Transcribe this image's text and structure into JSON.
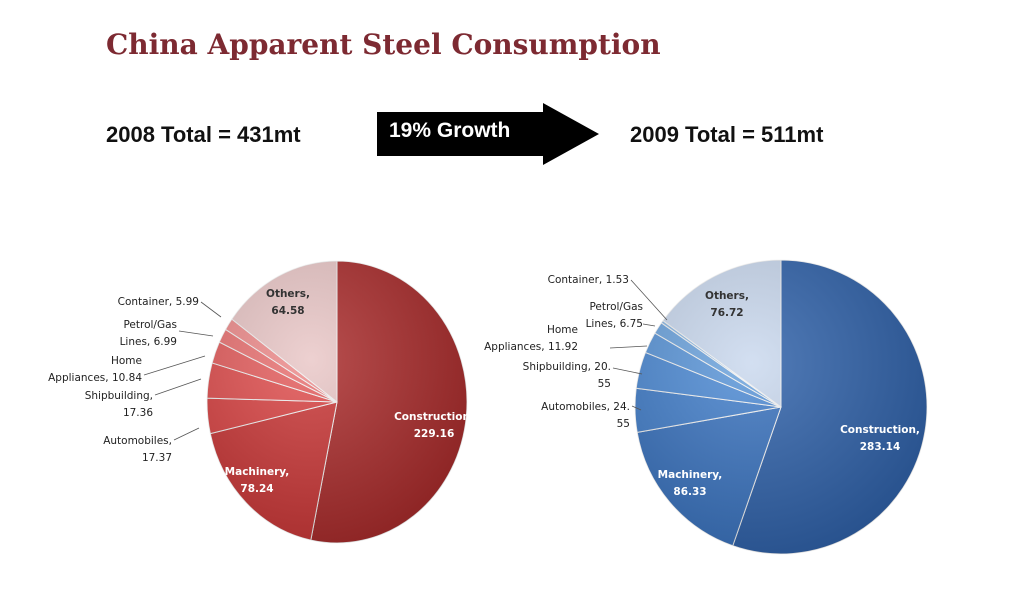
{
  "title": "China Apparent Steel Consumption",
  "total_2008": "2008 Total = 431mt",
  "total_2009": "2009 Total = 511mt",
  "growth_label": "19% Growth",
  "colors": {
    "title": "#7d2a32",
    "pie_2008_main": "#b32a2a",
    "pie_2008_others": "#e8c4c4",
    "pie_2009_main": "#2f67b0",
    "pie_2009_others": "#c6d5ec"
  },
  "chart_data": [
    {
      "type": "pie",
      "categories": [
        "Construction",
        "Machinery",
        "Automobiles",
        "Shipbuilding",
        "Home Appliances",
        "Petrol/Gas Lines",
        "Container",
        "Others"
      ],
      "values": [
        229.16,
        78.24,
        17.37,
        17.36,
        10.84,
        6.99,
        5.99,
        64.58
      ],
      "data_labels": [
        [
          "Construction,",
          "229.16"
        ],
        [
          "Machinery,",
          "78.24"
        ],
        [
          "Automobiles,",
          "17.37"
        ],
        [
          "Shipbuilding,",
          "17.36"
        ],
        [
          "Home",
          "Appliances, 10.84"
        ],
        [
          "Petrol/Gas",
          "Lines, 6.99"
        ],
        [
          "Container, 5.99"
        ],
        [
          "Others,",
          "64.58"
        ]
      ]
    },
    {
      "type": "pie",
      "categories": [
        "Construction",
        "Machinery",
        "Automobiles",
        "Shipbuilding",
        "Home Appliances",
        "Petrol/Gas Lines",
        "Container",
        "Others"
      ],
      "values": [
        283.14,
        86.33,
        24.55,
        20.55,
        11.92,
        6.75,
        1.53,
        76.72
      ],
      "data_labels": [
        [
          "Construction,",
          "283.14"
        ],
        [
          "Machinery,",
          "86.33"
        ],
        [
          "Automobiles, 24.",
          "55"
        ],
        [
          "Shipbuilding, 20.",
          "55"
        ],
        [
          "Home",
          "Appliances, 11.92"
        ],
        [
          "Petrol/Gas",
          "Lines, 6.75"
        ],
        [
          "Container, 1.53"
        ],
        [
          "Others,",
          "76.72"
        ]
      ]
    }
  ]
}
